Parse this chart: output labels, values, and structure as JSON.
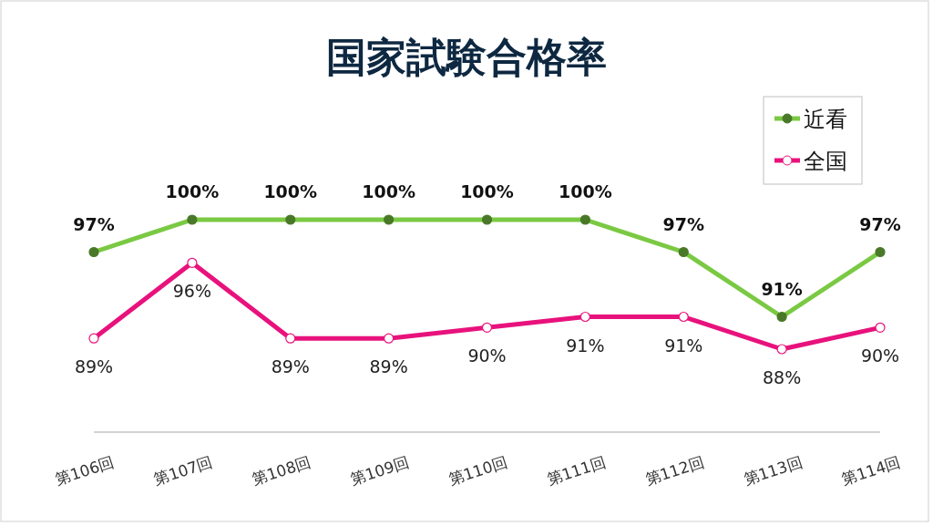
{
  "chart_data": {
    "type": "line",
    "title": "国家試験合格率",
    "categories": [
      "第106回",
      "第107回",
      "第108回",
      "第109回",
      "第110回",
      "第111回",
      "第112回",
      "第113回",
      "第114回"
    ],
    "series": [
      {
        "name": "近看",
        "color": "#7ac943",
        "values": [
          97,
          100,
          100,
          100,
          100,
          100,
          97,
          91,
          97
        ],
        "value_labels": [
          "97%",
          "100%",
          "100%",
          "100%",
          "100%",
          "100%",
          "97%",
          "91%",
          "97%"
        ]
      },
      {
        "name": "全国",
        "color": "#e8127c",
        "values": [
          89,
          96,
          89,
          89,
          90,
          91,
          91,
          88,
          90
        ],
        "value_labels": [
          "89%",
          "96%",
          "89%",
          "89%",
          "90%",
          "91%",
          "91%",
          "88%",
          "90%"
        ]
      }
    ],
    "legend": "top right",
    "marker": "circle",
    "line_style": "solid"
  }
}
